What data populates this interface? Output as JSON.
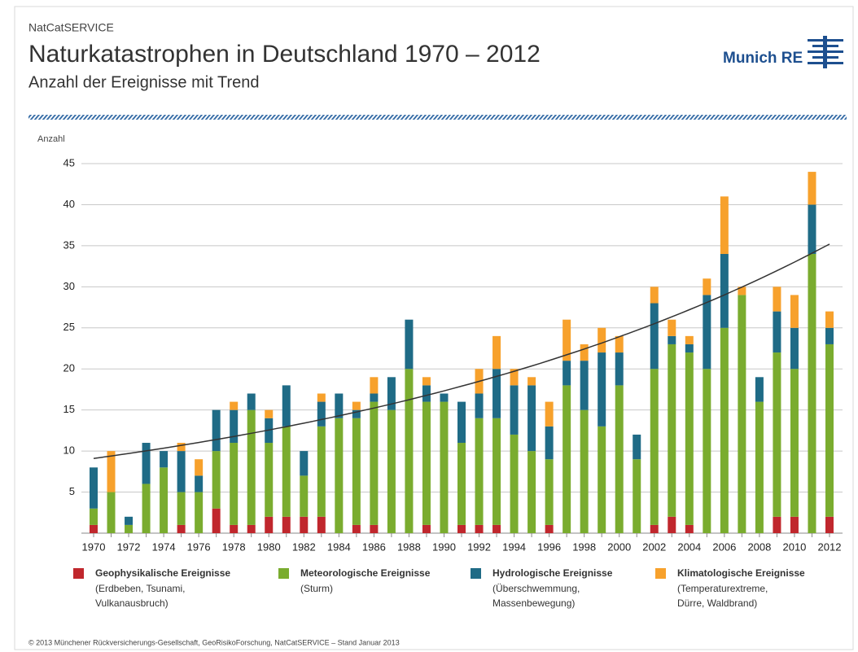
{
  "header": {
    "kicker": "NatCatSERVICE",
    "logo": "Munich RE"
  },
  "footer": "© 2013 Münchener Rückversicherungs-Gesellschaft, GeoRisikoForschung, NatCatSERVICE – Stand Januar 2013",
  "chart_data": {
    "type": "stacked-bar",
    "title": "Naturkatastrophen in Deutschland 1970 – 2012",
    "subtitle": "Anzahl der Ereignisse mit Trend",
    "y_label": "Anzahl",
    "categories": [
      "1970",
      null,
      "1972",
      null,
      "1974",
      null,
      "1976",
      null,
      "1978",
      null,
      "1980",
      null,
      "1982",
      null,
      "1984",
      null,
      "1986",
      null,
      "1988",
      null,
      "1990",
      null,
      "1992",
      null,
      "1994",
      null,
      "1996",
      null,
      "1998",
      null,
      "2000",
      null,
      "2002",
      null,
      "2004",
      null,
      "2006",
      null,
      "2008",
      null,
      "2010",
      null,
      "2012"
    ],
    "series": [
      {
        "name": "Geophysikalische Ereignisse",
        "description": [
          "(Erdbeben, Tsunami,",
          "Vulkanausbruch)"
        ],
        "color": "#c0272d",
        "values": [
          1,
          0,
          0,
          0,
          0,
          1,
          0,
          3,
          1,
          1,
          2,
          2,
          2,
          2,
          0,
          1,
          1,
          0,
          0,
          1,
          0,
          1,
          1,
          1,
          0,
          0,
          1,
          0,
          0,
          0,
          0,
          0,
          1,
          2,
          1,
          0,
          0,
          0,
          0,
          2,
          2,
          0,
          2
        ]
      },
      {
        "name": "Meteorologische Ereignisse",
        "description": [
          "(Sturm)"
        ],
        "color": "#7aac2f",
        "values": [
          2,
          5,
          1,
          6,
          8,
          4,
          5,
          7,
          10,
          14,
          9,
          11,
          5,
          11,
          14,
          13,
          15,
          15,
          20,
          15,
          16,
          10,
          13,
          13,
          12,
          10,
          8,
          18,
          15,
          13,
          18,
          9,
          19,
          21,
          21,
          20,
          25,
          29,
          16,
          20,
          18,
          34,
          21
        ]
      },
      {
        "name": "Hydrologische Ereignisse",
        "description": [
          "(Überschwemmung,",
          "Massenbewegung)"
        ],
        "color": "#1f6b86",
        "values": [
          5,
          0,
          1,
          5,
          2,
          5,
          2,
          5,
          4,
          2,
          3,
          5,
          3,
          3,
          3,
          1,
          1,
          4,
          6,
          2,
          1,
          5,
          3,
          6,
          6,
          8,
          4,
          3,
          6,
          9,
          4,
          3,
          8,
          1,
          1,
          9,
          9,
          0,
          3,
          5,
          5,
          6,
          2
        ]
      },
      {
        "name": "Klimatologische Ereignisse",
        "description": [
          "(Temperaturextreme,",
          "Dürre, Waldbrand)"
        ],
        "color": "#f7a12c",
        "values": [
          0,
          5,
          0,
          0,
          0,
          1,
          2,
          0,
          1,
          0,
          1,
          0,
          0,
          1,
          0,
          1,
          2,
          0,
          0,
          1,
          0,
          0,
          3,
          4,
          2,
          1,
          3,
          5,
          2,
          3,
          2,
          0,
          2,
          2,
          1,
          2,
          7,
          1,
          0,
          3,
          4,
          4,
          2
        ]
      }
    ],
    "trend": {
      "from": 9.1,
      "to": 35.2
    },
    "ylim": [
      0,
      45
    ],
    "yticks": [
      5,
      10,
      15,
      20,
      25,
      30,
      35,
      40,
      45
    ],
    "grid": true
  }
}
